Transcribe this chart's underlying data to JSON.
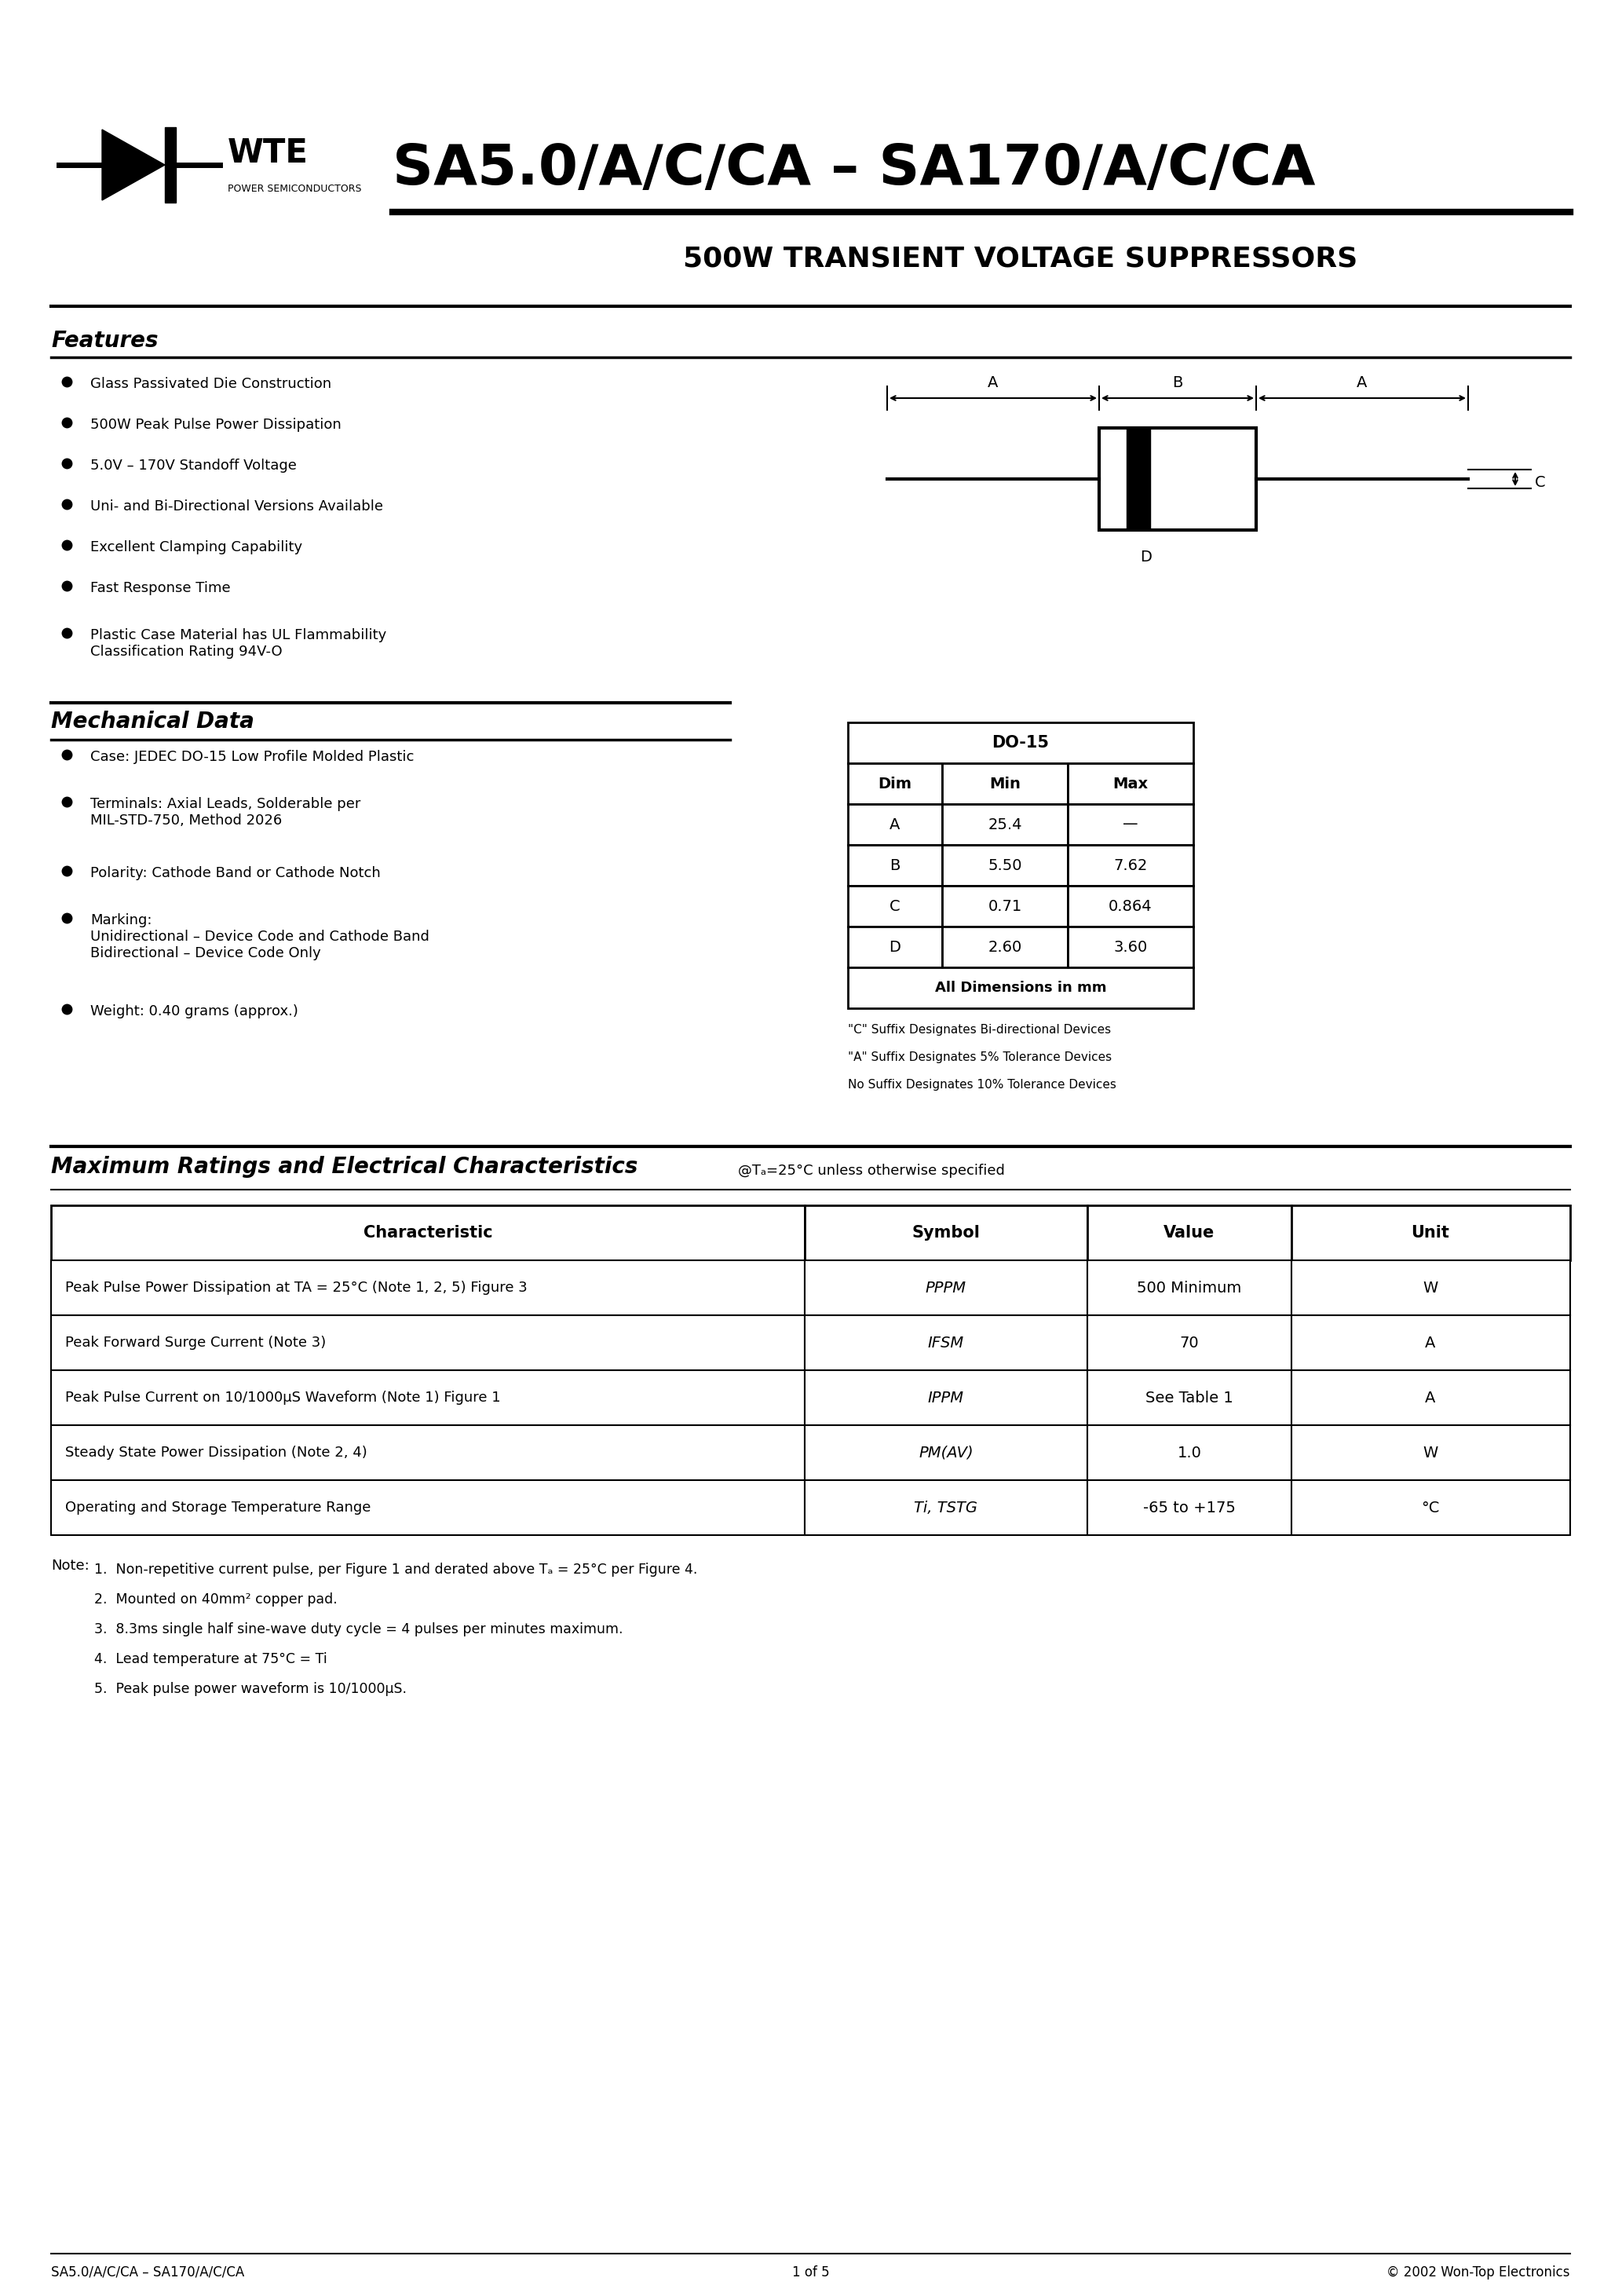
{
  "title_main": "SA5.0/A/C/CA – SA170/A/C/CA",
  "title_sub": "500W TRANSIENT VOLTAGE SUPPRESSORS",
  "logo_text": "WTE",
  "logo_sub": "POWER SEMICONDUCTORS",
  "features_title": "Features",
  "features": [
    "Glass Passivated Die Construction",
    "500W Peak Pulse Power Dissipation",
    "5.0V – 170V Standoff Voltage",
    "Uni- and Bi-Directional Versions Available",
    "Excellent Clamping Capability",
    "Fast Response Time",
    "Plastic Case Material has UL Flammability\nClassification Rating 94V-O"
  ],
  "mech_title": "Mechanical Data",
  "mech_items": [
    "Case: JEDEC DO-15 Low Profile Molded Plastic",
    "Terminals: Axial Leads, Solderable per\nMIL-STD-750, Method 2026",
    "Polarity: Cathode Band or Cathode Notch",
    "Marking:\nUnidirectional – Device Code and Cathode Band\nBidirectional – Device Code Only",
    "Weight: 0.40 grams (approx.)"
  ],
  "dim_table_title": "DO-15",
  "dim_headers": [
    "Dim",
    "Min",
    "Max"
  ],
  "dim_rows": [
    [
      "A",
      "25.4",
      "—"
    ],
    [
      "B",
      "5.50",
      "7.62"
    ],
    [
      "C",
      "0.71",
      "0.864"
    ],
    [
      "D",
      "2.60",
      "3.60"
    ]
  ],
  "dim_footer": "All Dimensions in mm",
  "dim_note1": "\"C\" Suffix Designates Bi-directional Devices",
  "dim_note2": "\"A\" Suffix Designates 5% Tolerance Devices",
  "dim_note3": "No Suffix Designates 10% Tolerance Devices",
  "max_ratings_title": "Maximum Ratings and Electrical Characteristics",
  "max_ratings_subtitle": "@Tₐ=25°C unless otherwise specified",
  "table_headers": [
    "Characteristic",
    "Symbol",
    "Value",
    "Unit"
  ],
  "char_texts": [
    "Peak Pulse Power Dissipation at TA = 25°C (Note 1, 2, 5) Figure 3",
    "Peak Forward Surge Current (Note 3)",
    "Peak Pulse Current on 10/1000μS Waveform (Note 1) Figure 1",
    "Steady State Power Dissipation (Note 2, 4)",
    "Operating and Storage Temperature Range"
  ],
  "symbols_display": [
    "PPPM",
    "IFSM",
    "IPPM",
    "PM(AV)",
    "Ti, TSTG"
  ],
  "values_display": [
    "500 Minimum",
    "70",
    "See Table 1",
    "1.0",
    "-65 to +175"
  ],
  "units_display": [
    "W",
    "A",
    "A",
    "W",
    "°C"
  ],
  "note_label": "Note:",
  "note_texts": [
    "1.  Non-repetitive current pulse, per Figure 1 and derated above Tₐ = 25°C per Figure 4.",
    "2.  Mounted on 40mm² copper pad.",
    "3.  8.3ms single half sine-wave duty cycle = 4 pulses per minutes maximum.",
    "4.  Lead temperature at 75°C = Ti",
    "5.  Peak pulse power waveform is 10/1000μS."
  ],
  "footer_left": "SA5.0/A/C/CA – SA170/A/C/CA",
  "footer_center": "1 of 5",
  "footer_right": "© 2002 Won-Top Electronics",
  "bg_color": "#ffffff"
}
